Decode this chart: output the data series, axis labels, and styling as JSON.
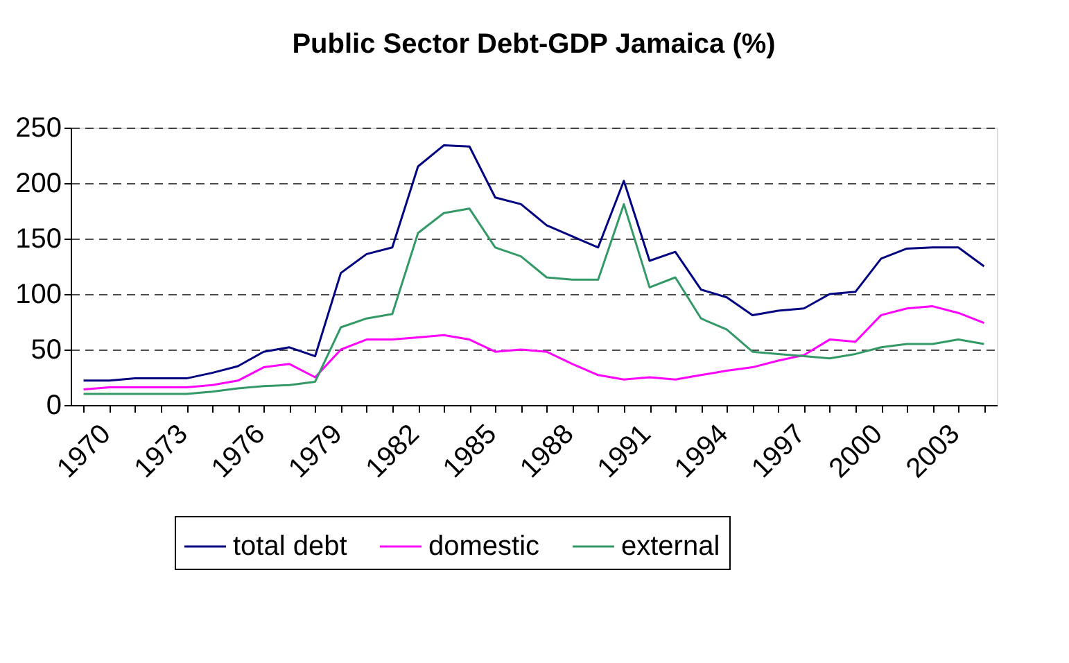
{
  "chart_data": {
    "type": "line",
    "title": "Public Sector Debt-GDP Jamaica (%)",
    "categories": [
      "1970",
      null,
      null,
      "1973",
      null,
      null,
      "1976",
      null,
      null,
      "1979",
      null,
      null,
      "1982",
      null,
      null,
      "1985",
      null,
      null,
      "1988",
      null,
      null,
      "1991",
      null,
      null,
      "1994",
      null,
      null,
      "1997",
      null,
      null,
      "2000",
      null,
      null,
      "2003",
      null,
      null
    ],
    "series": [
      {
        "name": "total debt",
        "color": "#000080",
        "values": [
          22,
          22,
          24,
          24,
          24,
          29,
          35,
          48,
          52,
          44,
          119,
          136,
          142,
          215,
          234,
          233,
          187,
          181,
          162,
          152,
          142,
          202,
          130,
          138,
          104,
          97,
          81,
          85,
          87,
          100,
          102,
          132,
          141,
          142,
          142,
          125
        ]
      },
      {
        "name": "domestic",
        "color": "#ff00ff",
        "values": [
          14,
          16,
          16,
          16,
          16,
          18,
          22,
          34,
          37,
          25,
          50,
          59,
          59,
          61,
          63,
          59,
          48,
          50,
          48,
          37,
          27,
          23,
          25,
          23,
          27,
          31,
          34,
          40,
          45,
          59,
          57,
          81,
          87,
          89,
          83,
          74
        ]
      },
      {
        "name": "external",
        "color": "#339966",
        "values": [
          10,
          10,
          10,
          10,
          10,
          12,
          15,
          17,
          18,
          21,
          70,
          78,
          82,
          155,
          173,
          177,
          142,
          134,
          115,
          113,
          113,
          181,
          106,
          115,
          78,
          68,
          48,
          46,
          44,
          42,
          46,
          52,
          55,
          55,
          59,
          55
        ]
      }
    ],
    "ylim": [
      0,
      250
    ],
    "yticks": [
      0,
      50,
      100,
      150,
      200,
      250
    ],
    "grid": "y",
    "legend": "bottom",
    "marker": "none"
  }
}
